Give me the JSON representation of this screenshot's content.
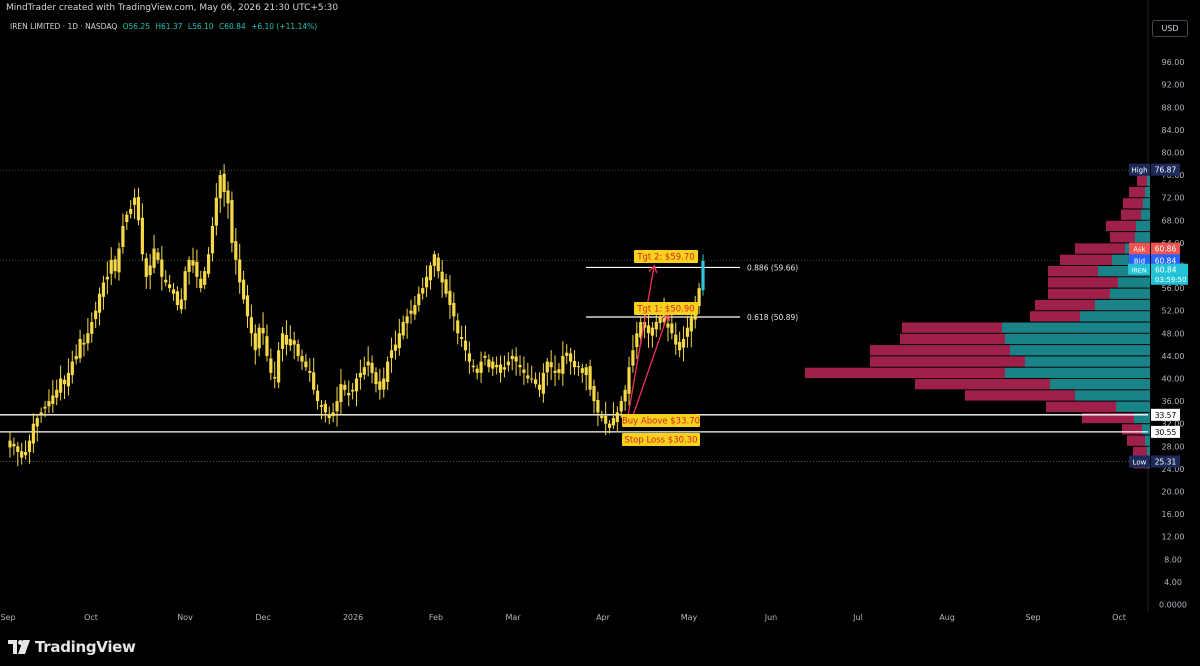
{
  "caption": "MindTrader created with TradingView.com, May 06, 2026 21:30 UTC+5:30",
  "legend": {
    "name": "IREN LIMITED · 1D · NASDAQ",
    "open": "O56.25",
    "high": "H61.37",
    "low": "L56.10",
    "close": "C60.84",
    "change": "+6.10 (+11.14%)"
  },
  "currency_button": "USD",
  "brand": "TradingView",
  "colors": {
    "background": "#000000",
    "candle": "#f5d94a",
    "last_candle": "#2fc6d9",
    "volume_up": "#1b8a8f",
    "volume_down": "#a8234f",
    "label_fill": "#f7d21c",
    "label_text": "#d8231f",
    "arrow": "#f0325e",
    "ask": "#ef5350",
    "bid": "#2962ff",
    "last_price": "#22c3d9"
  },
  "chart_data": {
    "type": "candlestick",
    "symbol": "IREN",
    "timeframe": "1D",
    "exchange": "NASDAQ",
    "y_range": [
      0,
      100
    ],
    "y_ticks": [
      "96.00",
      "92.00",
      "88.00",
      "84.00",
      "80.00",
      "76.00",
      "72.00",
      "68.00",
      "64.00",
      "60.00",
      "56.00",
      "52.00",
      "48.00",
      "44.00",
      "40.00",
      "36.00",
      "32.00",
      "28.00",
      "24.00",
      "20.00",
      "16.00",
      "12.00",
      "8.00",
      "4.00",
      "0.0000"
    ],
    "x_labels": [
      "Sep",
      "Oct",
      "Nov",
      "Dec",
      "2026",
      "Feb",
      "Mar",
      "Apr",
      "May",
      "Jun",
      "Jul",
      "Aug",
      "Sep",
      "Oct"
    ],
    "prices": [
      29,
      28,
      27,
      26,
      27,
      29,
      32,
      33,
      34,
      35,
      36,
      37,
      38,
      40,
      39,
      41,
      43,
      44,
      47,
      46,
      48,
      50,
      52,
      55,
      57,
      58,
      61,
      59,
      63,
      67,
      69,
      70,
      72,
      68,
      62,
      58,
      60,
      63,
      61,
      58,
      57,
      56,
      55,
      53,
      54,
      59,
      61,
      60,
      58,
      56,
      59,
      62,
      67,
      72,
      76,
      73,
      71,
      64,
      61,
      57,
      54,
      51,
      48,
      45,
      49,
      48,
      44,
      41,
      40,
      45,
      48,
      46,
      47,
      46,
      44,
      43,
      42,
      41,
      38,
      36,
      35,
      34,
      33,
      34,
      36,
      39,
      38,
      37,
      38,
      40,
      41,
      42,
      43,
      41,
      39,
      38,
      40,
      43,
      45,
      46,
      48,
      50,
      51,
      52,
      53,
      55,
      56,
      58,
      60,
      62,
      59,
      57,
      55,
      53,
      51,
      48,
      47,
      45,
      43,
      42,
      41,
      43,
      44,
      42,
      43,
      42,
      41,
      42,
      43,
      44,
      43,
      42,
      41,
      40,
      40,
      39,
      38,
      41,
      43,
      42,
      41,
      41,
      44,
      44,
      43,
      42,
      42,
      41,
      42,
      38,
      36,
      34,
      33,
      32,
      32,
      33,
      34,
      36,
      38,
      42,
      45,
      48,
      50,
      49,
      48,
      49,
      50,
      51,
      50,
      49,
      48,
      46,
      45,
      47,
      49,
      51,
      53,
      56,
      60.84
    ],
    "last": {
      "label": "IREN",
      "price": "60.84",
      "countdown": "03:59:50"
    },
    "price_labels": [
      {
        "tag": "High",
        "price": "76.87"
      },
      {
        "tag": "Ask",
        "price": "60.86"
      },
      {
        "tag": "Bid",
        "price": "60.84"
      },
      {
        "tag": "",
        "price": "33.57"
      },
      {
        "tag": "",
        "price": "30.55"
      },
      {
        "tag": "Low",
        "price": "25.31"
      }
    ],
    "horizontal_lines": [
      {
        "price": 33.57,
        "color": "white"
      },
      {
        "price": 30.55,
        "color": "white"
      },
      {
        "price": 59.66,
        "color": "white",
        "label": "0.886 (59.66)"
      },
      {
        "price": 50.89,
        "color": "white",
        "label": "0.618 (50.89)"
      },
      {
        "price": 76.87,
        "color": "dotted"
      },
      {
        "price": 25.31,
        "color": "dotted"
      }
    ],
    "annotations": [
      {
        "text": "Tgt 2: $59.70",
        "price": 59.7
      },
      {
        "text": "Tgt 1: $50.90",
        "price": 50.9
      },
      {
        "text": "Buy Above $33.70",
        "price": 33.7
      },
      {
        "text": "Stop Loss $30.30",
        "price": 30.3
      }
    ],
    "volume_profile": {
      "bin_step": 2,
      "bins": [
        {
          "price": 25,
          "up": 2,
          "down": 15
        },
        {
          "price": 27,
          "up": 3,
          "down": 14
        },
        {
          "price": 29,
          "up": 5,
          "down": 18
        },
        {
          "price": 31,
          "up": 8,
          "down": 20
        },
        {
          "price": 33,
          "up": 16,
          "down": 52
        },
        {
          "price": 35,
          "up": 34,
          "down": 70
        },
        {
          "price": 37,
          "up": 75,
          "down": 110
        },
        {
          "price": 39,
          "up": 100,
          "down": 135
        },
        {
          "price": 41,
          "up": 145,
          "down": 200
        },
        {
          "price": 43,
          "up": 125,
          "down": 155
        },
        {
          "price": 45,
          "up": 140,
          "down": 140
        },
        {
          "price": 47,
          "up": 145,
          "down": 105
        },
        {
          "price": 49,
          "up": 148,
          "down": 100
        },
        {
          "price": 51,
          "up": 70,
          "down": 50
        },
        {
          "price": 53,
          "up": 55,
          "down": 60
        },
        {
          "price": 55,
          "up": 40,
          "down": 62
        },
        {
          "price": 57,
          "up": 32,
          "down": 70
        },
        {
          "price": 59,
          "up": 52,
          "down": 50
        },
        {
          "price": 61,
          "up": 38,
          "down": 52
        },
        {
          "price": 63,
          "up": 25,
          "down": 50
        },
        {
          "price": 65,
          "up": 15,
          "down": 25
        },
        {
          "price": 67,
          "up": 14,
          "down": 30
        },
        {
          "price": 69,
          "up": 9,
          "down": 20
        },
        {
          "price": 71,
          "up": 7,
          "down": 20
        },
        {
          "price": 73,
          "up": 5,
          "down": 16
        },
        {
          "price": 75,
          "up": 3,
          "down": 10
        }
      ]
    }
  }
}
